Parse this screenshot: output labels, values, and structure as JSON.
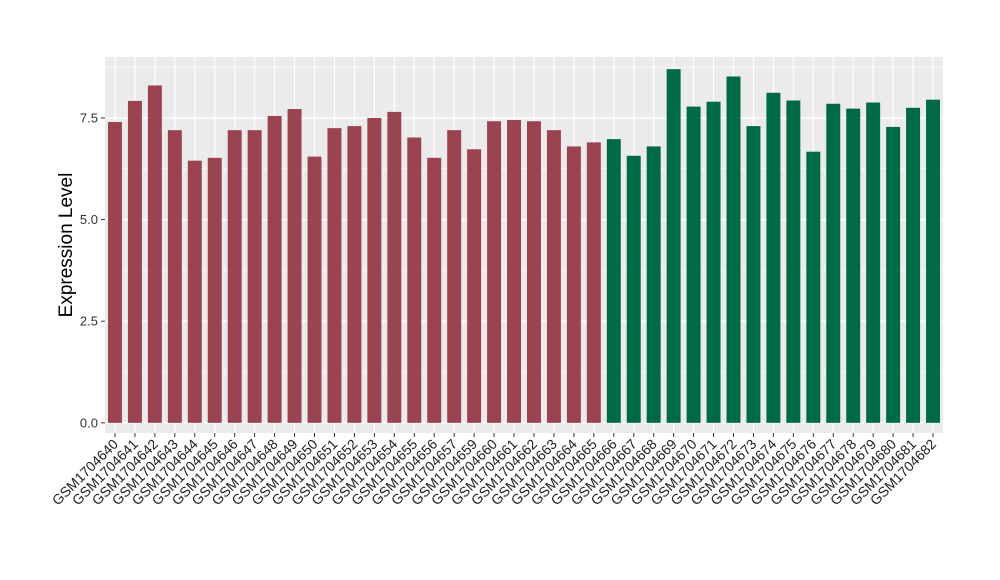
{
  "chart_data": {
    "type": "bar",
    "title": "",
    "xlabel": "",
    "ylabel": "Expression Level",
    "ylim": [
      -0.25,
      9.0
    ],
    "yticks": [
      0.0,
      2.5,
      5.0,
      7.5
    ],
    "ytick_labels": [
      "0.0",
      "2.5",
      "5.0",
      "7.5"
    ],
    "grid": true,
    "legend": "none",
    "colors": {
      "group_1": "#9b4451",
      "group_2": "#006a45",
      "panel_bg": "#ebebeb",
      "grid": "#ffffff"
    },
    "categories": [
      "GSM1704640",
      "GSM1704641",
      "GSM1704642",
      "GSM1704643",
      "GSM1704644",
      "GSM1704645",
      "GSM1704646",
      "GSM1704647",
      "GSM1704648",
      "GSM1704649",
      "GSM1704650",
      "GSM1704651",
      "GSM1704652",
      "GSM1704653",
      "GSM1704654",
      "GSM1704655",
      "GSM1704656",
      "GSM1704657",
      "GSM1704659",
      "GSM1704660",
      "GSM1704661",
      "GSM1704662",
      "GSM1704663",
      "GSM1704664",
      "GSM1704665",
      "GSM1704666",
      "GSM1704667",
      "GSM1704668",
      "GSM1704669",
      "GSM1704670",
      "GSM1704671",
      "GSM1704672",
      "GSM1704673",
      "GSM1704674",
      "GSM1704675",
      "GSM1704676",
      "GSM1704677",
      "GSM1704678",
      "GSM1704679",
      "GSM1704680",
      "GSM1704681",
      "GSM1704682"
    ],
    "values": [
      7.4,
      7.92,
      8.3,
      7.2,
      6.45,
      6.52,
      7.2,
      7.2,
      7.55,
      7.72,
      6.55,
      7.25,
      7.3,
      7.5,
      7.65,
      7.02,
      6.52,
      7.2,
      6.73,
      7.42,
      7.45,
      7.42,
      7.2,
      6.8,
      6.9,
      6.98,
      6.57,
      6.8,
      8.7,
      7.78,
      7.9,
      8.52,
      7.3,
      8.12,
      7.93,
      6.67,
      7.85,
      7.73,
      7.88,
      7.28,
      7.75,
      7.95
    ],
    "groups": [
      1,
      1,
      1,
      1,
      1,
      1,
      1,
      1,
      1,
      1,
      1,
      1,
      1,
      1,
      1,
      1,
      1,
      1,
      1,
      1,
      1,
      1,
      1,
      1,
      1,
      2,
      2,
      2,
      2,
      2,
      2,
      2,
      2,
      2,
      2,
      2,
      2,
      2,
      2,
      2,
      2,
      2
    ]
  }
}
